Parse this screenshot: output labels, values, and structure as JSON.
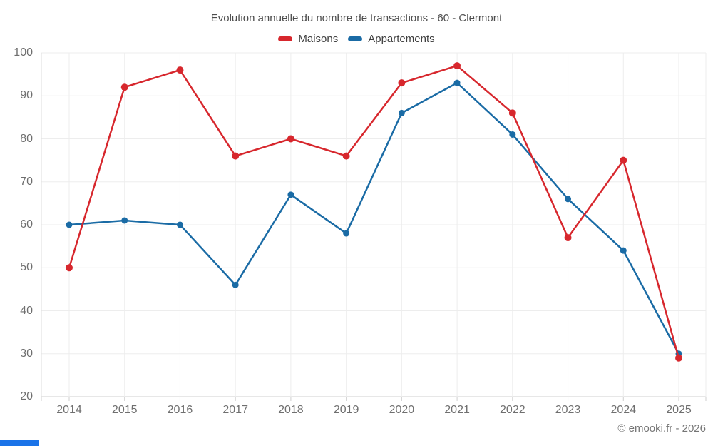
{
  "title": "Evolution annuelle du nombre de transactions - 60 - Clermont",
  "footer": "© emooki.fr - 2026",
  "colors": {
    "maisons": "#d7272d",
    "appartements": "#1a6ba5",
    "grid": "#ededed",
    "axis": "#cfcfcf",
    "left_axis": "#dedede",
    "tick_text": "#6f6f6f",
    "accent_bar": "#1a73e8"
  },
  "chart_data": {
    "type": "line",
    "x": [
      2014,
      2015,
      2016,
      2017,
      2018,
      2019,
      2020,
      2021,
      2022,
      2023,
      2024,
      2025
    ],
    "series": [
      {
        "name": "Maisons",
        "color": "#d7272d",
        "values": [
          50,
          92,
          96,
          76,
          80,
          76,
          93,
          97,
          86,
          57,
          75,
          29
        ]
      },
      {
        "name": "Appartements",
        "color": "#1a6ba5",
        "values": [
          60,
          61,
          60,
          46,
          67,
          58,
          86,
          93,
          81,
          66,
          54,
          30
        ]
      }
    ],
    "ylim": [
      20,
      100
    ],
    "yticks": [
      20,
      30,
      40,
      50,
      60,
      70,
      80,
      90,
      100
    ],
    "grid": true,
    "legend_position": "top",
    "xlabel": "",
    "ylabel": ""
  }
}
